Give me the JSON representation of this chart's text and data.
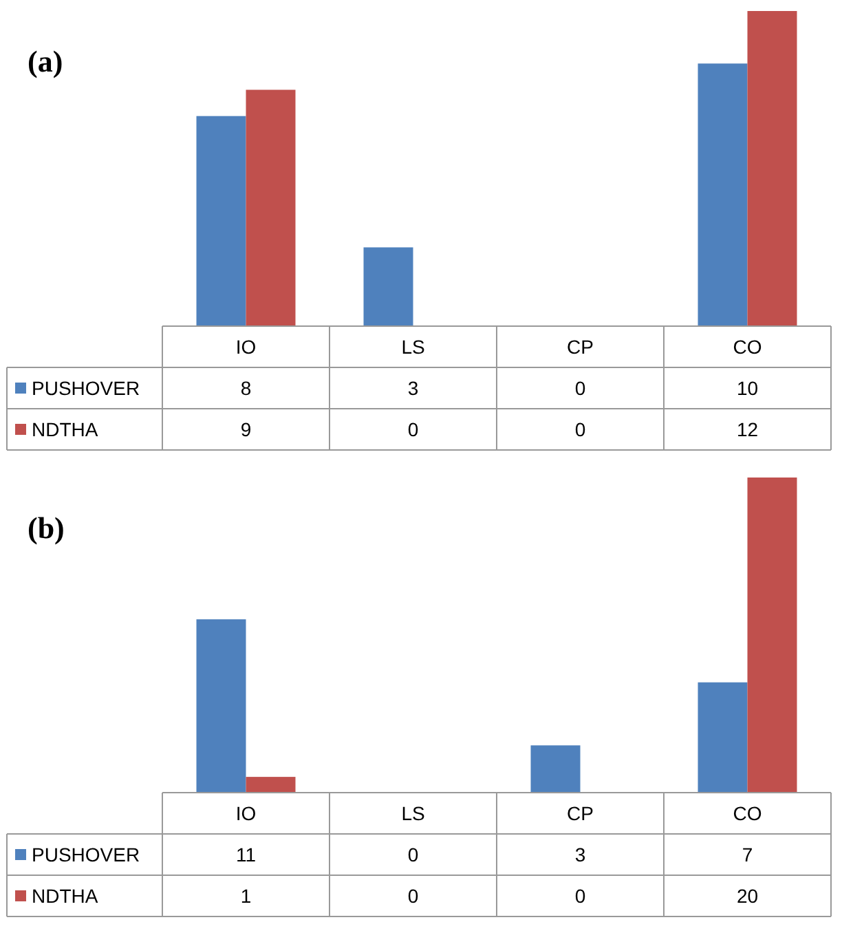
{
  "chart_data": [
    {
      "type": "bar",
      "title": "(a)",
      "categories": [
        "IO",
        "LS",
        "CP",
        "CO"
      ],
      "series": [
        {
          "name": "PUSHOVER",
          "color": "#4f81bd",
          "values": [
            8,
            3,
            0,
            10
          ]
        },
        {
          "name": "NDTHA",
          "color": "#c0504d",
          "values": [
            9,
            0,
            0,
            12
          ]
        }
      ],
      "data_labels": true,
      "legend": "bottom"
    },
    {
      "type": "bar",
      "title": "(b)",
      "categories": [
        "IO",
        "LS",
        "CP",
        "CO"
      ],
      "series": [
        {
          "name": "PUSHOVER",
          "color": "#4f81bd",
          "values": [
            11,
            0,
            3,
            7
          ]
        },
        {
          "name": "NDTHA",
          "color": "#c0504d",
          "values": [
            1,
            0,
            0,
            20
          ]
        }
      ],
      "data_labels": true,
      "legend": "bottom"
    }
  ]
}
